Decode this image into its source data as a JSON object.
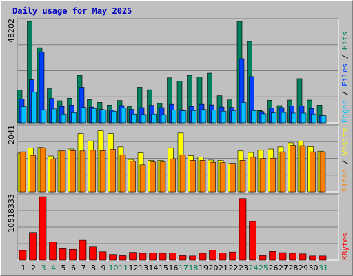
{
  "chart_data": {
    "type": "bar",
    "title": "Daily usage for May 2025",
    "categories": [
      "1",
      "2",
      "3",
      "4",
      "5",
      "6",
      "7",
      "8",
      "9",
      "10",
      "11",
      "12",
      "13",
      "14",
      "15",
      "16",
      "17",
      "18",
      "19",
      "20",
      "21",
      "22",
      "23",
      "24",
      "25",
      "26",
      "27",
      "28",
      "29",
      "30",
      "31"
    ],
    "weekend_days": [
      "3",
      "4",
      "10",
      "11",
      "17",
      "18",
      "24",
      "25",
      "31"
    ],
    "colors": {
      "title": "#0000c0",
      "hits": "#00805c",
      "files": "#0040ff",
      "pages": "#00c0ff",
      "visits": "#ffff00",
      "sites": "#ff8000",
      "kbytes": "#ff0000",
      "weekday_label": "#000000",
      "weekend_label": "#00805c",
      "plot_bg": "#c0c0c0",
      "grid": "#808080"
    },
    "panels": [
      {
        "id": "usage",
        "max_label": "48202",
        "ymax": 48202,
        "legend": [
          {
            "text": "Pages",
            "color": "#00c0ff"
          },
          {
            "text": " / ",
            "color": "#000000"
          },
          {
            "text": "Files",
            "color": "#0040ff"
          },
          {
            "text": " / ",
            "color": "#000000"
          },
          {
            "text": "Hits",
            "color": "#00805c"
          }
        ],
        "series": [
          {
            "name": "Hits",
            "color": "#00805c",
            "values": [
              15500,
              48202,
              35700,
              16200,
              10500,
              11700,
              22600,
              11000,
              9700,
              8400,
              10600,
              7700,
              16900,
              15700,
              9200,
              21400,
              19800,
              22600,
              21800,
              23600,
              12900,
              10900,
              48202,
              38700,
              5800,
              10700,
              8200,
              10800,
              21000,
              10800,
              8400
            ]
          },
          {
            "name": "Files",
            "color": "#0040ff",
            "values": [
              11300,
              20500,
              33500,
              11600,
              7800,
              8400,
              16900,
              7500,
              6300,
              6000,
              8200,
              6400,
              7200,
              8300,
              7200,
              8800,
              6200,
              7800,
              8800,
              8500,
              7500,
              7300,
              30500,
              22000,
              5300,
              7000,
              7200,
              8000,
              8100,
              6800,
              3400
            ]
          },
          {
            "name": "Pages",
            "color": "#00c0ff",
            "values": [
              7700,
              14500,
              6200,
              6600,
              4200,
              4800,
              7300,
              6800,
              6100,
              5500,
              7000,
              4200,
              4000,
              4200,
              3900,
              6000,
              5700,
              5800,
              6300,
              6000,
              5500,
              5700,
              9700,
              5800,
              4300,
              4700,
              4900,
              4600,
              4600,
              4200,
              3400
            ]
          }
        ]
      },
      {
        "id": "visitors",
        "max_label": "2041",
        "ymax": 2041,
        "legend": [
          {
            "text": "Sites",
            "color": "#ff8000"
          },
          {
            "text": " / ",
            "color": "#000000"
          },
          {
            "text": "Visits",
            "color": "#ffff00"
          }
        ],
        "series": [
          {
            "name": "Visits",
            "color": "#ffff00",
            "values": [
              1230,
              1390,
              1410,
              1140,
              1300,
              1360,
              1850,
              1620,
              1940,
              1850,
              1430,
              1030,
              1240,
              1000,
              1000,
              1400,
              1870,
              1150,
              1110,
              1010,
              1000,
              900,
              1300,
              1250,
              1320,
              1360,
              1430,
              1560,
              1610,
              1440,
              1290
            ]
          },
          {
            "name": "Sites",
            "color": "#ff8000",
            "values": [
              1270,
              1160,
              1400,
              1050,
              1300,
              1310,
              1300,
              1320,
              1310,
              1350,
              1180,
              970,
              860,
              950,
              950,
              1050,
              1180,
              1000,
              1000,
              940,
              930,
              910,
              1000,
              1100,
              1060,
              1070,
              1270,
              1480,
              1470,
              1270,
              1270
            ]
          }
        ]
      },
      {
        "id": "kbytes",
        "max_label": "10518333",
        "ymax": 10518333,
        "legend": [
          {
            "text": "KBytes",
            "color": "#ff0000"
          }
        ],
        "series": [
          {
            "name": "KBytes",
            "color": "#ff0000",
            "values": [
              1600000,
              4600000,
              10518333,
              3000000,
              1900000,
              1800000,
              3300000,
              2200000,
              1400000,
              950000,
              750000,
              1300000,
              1150000,
              1200000,
              1150000,
              1200000,
              750000,
              700000,
              1150000,
              1650000,
              1200000,
              1350000,
              10200000,
              6400000,
              750000,
              1450000,
              1250000,
              1150000,
              1050000,
              700000,
              700000
            ]
          }
        ]
      }
    ]
  }
}
